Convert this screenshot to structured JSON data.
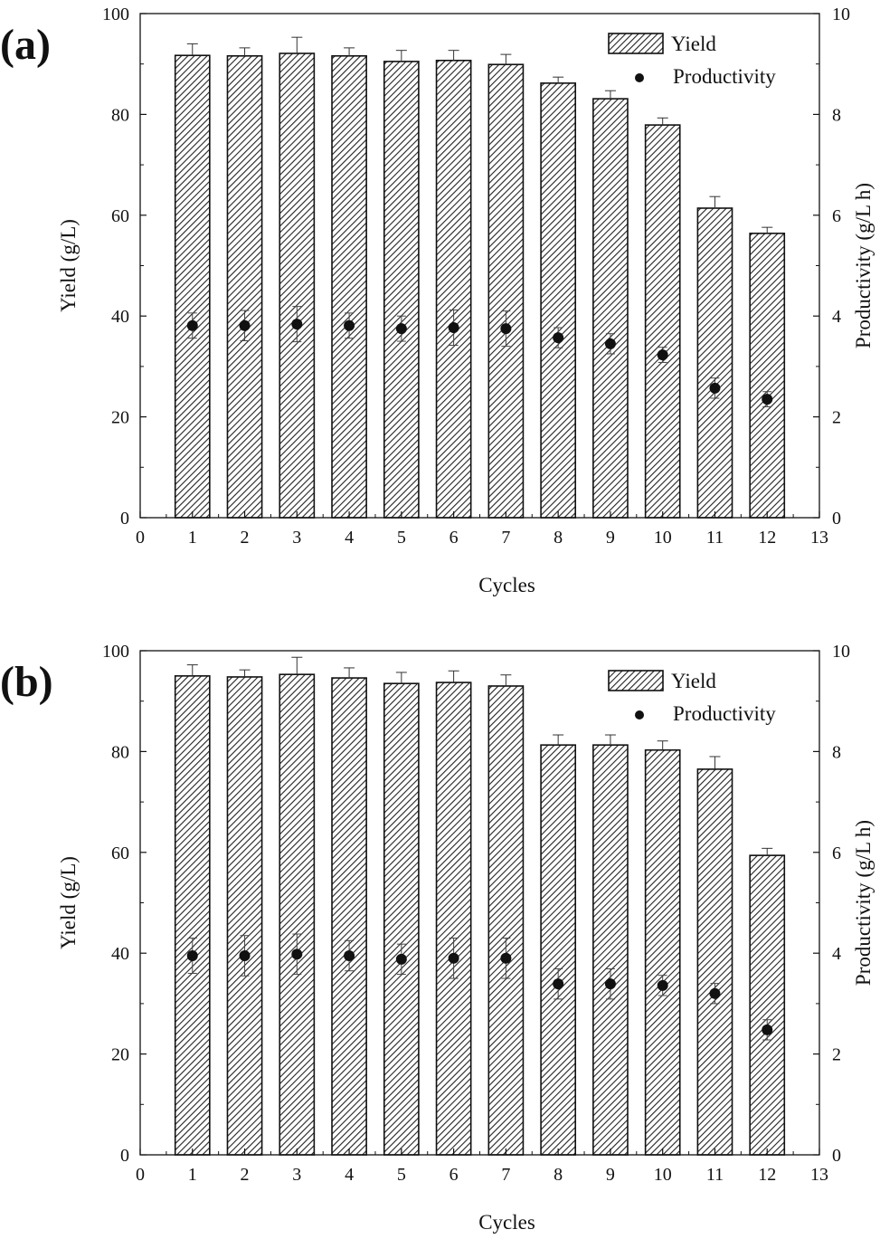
{
  "chart_data": [
    {
      "panel_label": "(a)",
      "type": "bar",
      "xlabel": "Cycles",
      "ylabel": "Yield (g/L)",
      "y2label": "Productivity (g/L h)",
      "xlim": [
        0,
        13
      ],
      "ylim": [
        0,
        100
      ],
      "y2lim": [
        0,
        10
      ],
      "xticks": [
        "0",
        "1",
        "2",
        "3",
        "4",
        "5",
        "6",
        "7",
        "8",
        "9",
        "10",
        "11",
        "12",
        "13"
      ],
      "yticks": [
        "0",
        "20",
        "40",
        "60",
        "80",
        "100"
      ],
      "y2ticks": [
        "0",
        "2",
        "4",
        "6",
        "8",
        "10"
      ],
      "legend": {
        "placement": "top-right",
        "entries": [
          "Yield",
          "Productivity"
        ]
      },
      "categories": [
        1,
        2,
        3,
        4,
        5,
        6,
        7,
        8,
        9,
        10,
        11,
        12
      ],
      "series": [
        {
          "name": "Yield",
          "type": "bar",
          "axis": "left",
          "values": [
            91.7,
            91.6,
            92.1,
            91.6,
            90.5,
            90.7,
            89.9,
            86.2,
            83.1,
            77.9,
            61.4,
            56.4
          ],
          "errors": [
            2.3,
            1.6,
            3.2,
            1.6,
            2.2,
            2.0,
            2.0,
            1.2,
            1.6,
            1.4,
            2.3,
            1.2
          ]
        },
        {
          "name": "Productivity",
          "type": "scatter",
          "axis": "right",
          "values": [
            3.81,
            3.81,
            3.84,
            3.81,
            3.75,
            3.77,
            3.75,
            3.57,
            3.45,
            3.23,
            2.57,
            2.35
          ],
          "errors": [
            0.25,
            0.3,
            0.35,
            0.25,
            0.25,
            0.35,
            0.35,
            0.2,
            0.2,
            0.15,
            0.2,
            0.15
          ]
        }
      ]
    },
    {
      "panel_label": "(b)",
      "type": "bar",
      "xlabel": "Cycles",
      "ylabel": "Yield (g/L)",
      "y2label": "Productivity (g/L h)",
      "xlim": [
        0,
        13
      ],
      "ylim": [
        0,
        100
      ],
      "y2lim": [
        0,
        10
      ],
      "xticks": [
        "0",
        "1",
        "2",
        "3",
        "4",
        "5",
        "6",
        "7",
        "8",
        "9",
        "10",
        "11",
        "12",
        "13"
      ],
      "yticks": [
        "0",
        "20",
        "40",
        "60",
        "80",
        "100"
      ],
      "y2ticks": [
        "0",
        "2",
        "4",
        "6",
        "8",
        "10"
      ],
      "legend": {
        "placement": "top-right",
        "entries": [
          "Yield",
          "Productivity"
        ]
      },
      "categories": [
        1,
        2,
        3,
        4,
        5,
        6,
        7,
        8,
        9,
        10,
        11,
        12
      ],
      "series": [
        {
          "name": "Yield",
          "type": "bar",
          "axis": "left",
          "values": [
            95.0,
            94.8,
            95.3,
            94.6,
            93.5,
            93.7,
            93.0,
            81.3,
            81.3,
            80.3,
            76.5,
            59.4
          ],
          "errors": [
            2.2,
            1.4,
            3.4,
            2.0,
            2.2,
            2.3,
            2.2,
            2.0,
            2.0,
            1.8,
            2.5,
            1.4
          ]
        },
        {
          "name": "Productivity",
          "type": "scatter",
          "axis": "right",
          "values": [
            3.95,
            3.95,
            3.98,
            3.95,
            3.88,
            3.9,
            3.9,
            3.39,
            3.39,
            3.36,
            3.2,
            2.48
          ],
          "errors": [
            0.35,
            0.4,
            0.4,
            0.3,
            0.3,
            0.4,
            0.4,
            0.3,
            0.3,
            0.2,
            0.2,
            0.2
          ]
        }
      ]
    }
  ]
}
